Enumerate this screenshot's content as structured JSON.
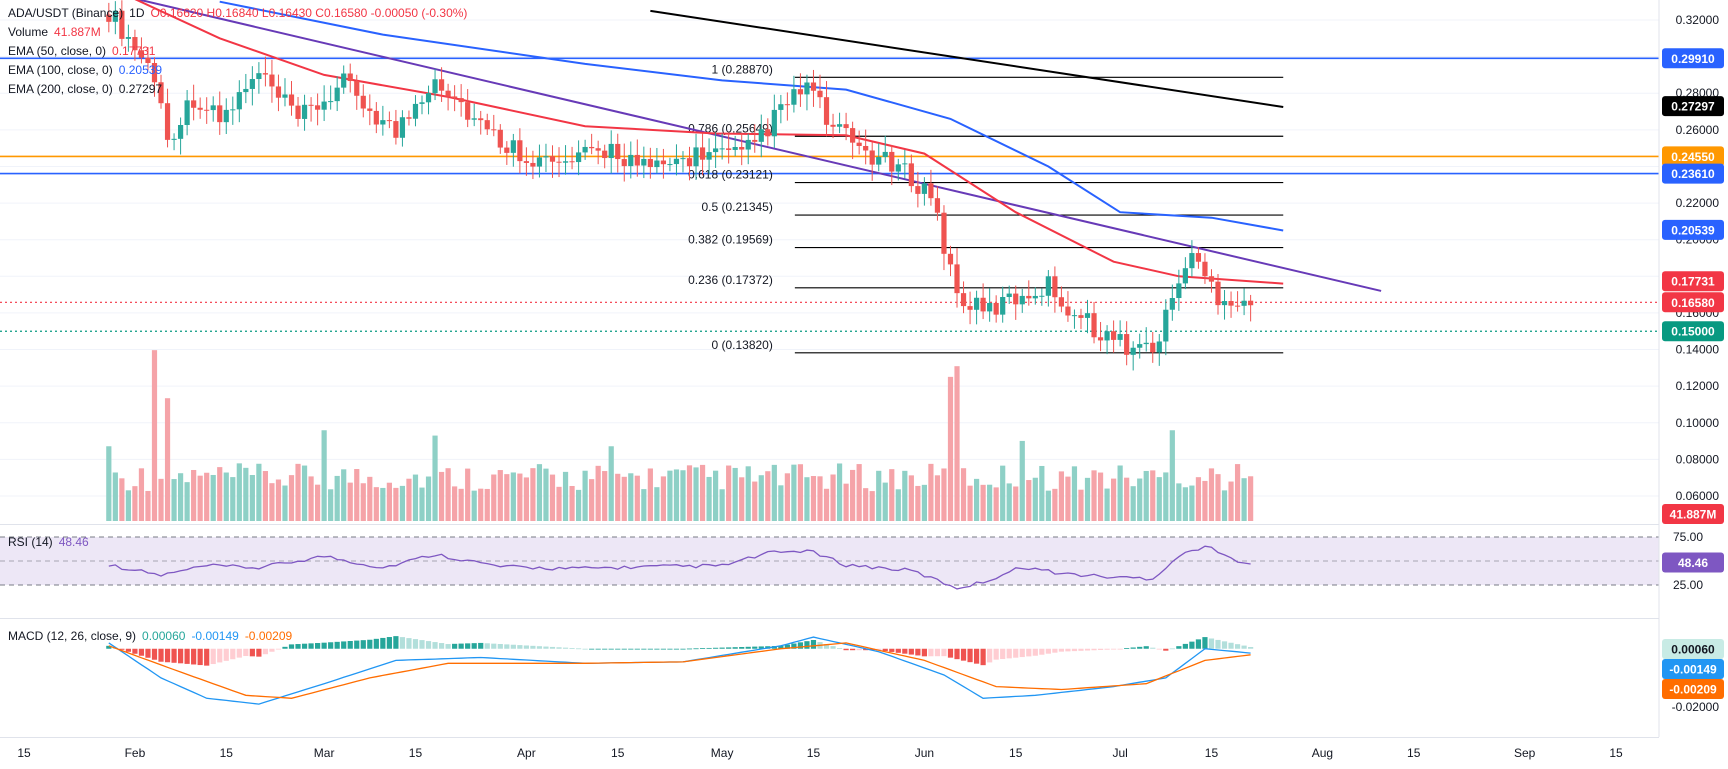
{
  "header": {
    "symbol": "ADA/USDT (Binance)",
    "interval": "1D",
    "ohlc_label": "O0.16620 H0.16840 L0.16430 C0.16580 -0.00050 (-0.30%)"
  },
  "indicators": {
    "volume": {
      "label": "Volume",
      "value": "41.887M"
    },
    "ema50": {
      "label": "EMA (50, close, 0)",
      "value": "0.17731"
    },
    "ema100": {
      "label": "EMA (100, close, 0)",
      "value": "0.20539"
    },
    "ema200": {
      "label": "EMA (200, close, 0)",
      "value": "0.27297"
    },
    "rsi": {
      "label": "RSI (14)",
      "value": "48.46"
    },
    "macd": {
      "label": "MACD (12, 26, close, 9)",
      "hist": "0.00060",
      "macd": "-0.00149",
      "signal": "-0.00209"
    }
  },
  "colors": {
    "up": "#26a69a",
    "down": "#ef5350",
    "vol_up": "#8ed0c6",
    "vol_down": "#f5a3a8",
    "ema50": "#f23645",
    "ema100": "#2962ff",
    "ema200": "#000000",
    "trendline": "#673ab7",
    "fib": "#000000",
    "h_blue": "#2962ff",
    "h_orange": "#ff9800",
    "h_green": "#089981",
    "rsi_line": "#7e57c2",
    "rsi_band": "#ede7f6",
    "macd_line": "#2196f3",
    "signal_line": "#ff6d00",
    "grid": "#f0f3fa",
    "axis_text": "#131722"
  },
  "price_axis": {
    "ticks": [
      "0.32000",
      "0.30000",
      "0.28000",
      "0.26000",
      "0.24000",
      "0.22000",
      "0.20000",
      "0.18000",
      "0.16000",
      "0.14000",
      "0.12000",
      "0.10000",
      "0.08000",
      "0.06000"
    ]
  },
  "rsi_axis": {
    "ticks": [
      "75.00",
      "25.00"
    ]
  },
  "macd_axis": {
    "ticks": [
      "-0.02000"
    ]
  },
  "time_axis": {
    "labels": [
      "15",
      "Feb",
      "15",
      "Mar",
      "15",
      "Apr",
      "15",
      "May",
      "15",
      "Jun",
      "15",
      "Jul",
      "15",
      "Aug",
      "15",
      "Sep",
      "15"
    ]
  },
  "price_badges": [
    {
      "text": "0.29910",
      "value": 0.2991,
      "bg": "#2962ff",
      "fg": "#ffffff"
    },
    {
      "text": "0.27297",
      "value": 0.27297,
      "bg": "#000000",
      "fg": "#ffffff"
    },
    {
      "text": "0.24550",
      "value": 0.2455,
      "bg": "#ff9800",
      "fg": "#ffffff"
    },
    {
      "text": "0.23610",
      "value": 0.2361,
      "bg": "#2962ff",
      "fg": "#ffffff"
    },
    {
      "text": "0.20539",
      "value": 0.20539,
      "bg": "#2962ff",
      "fg": "#ffffff"
    },
    {
      "text": "0.17731",
      "value": 0.17731,
      "bg": "#f23645",
      "fg": "#ffffff"
    },
    {
      "text": "0.16580",
      "value": 0.1658,
      "bg": "#f23645",
      "fg": "#ffffff"
    },
    {
      "text": "0.15000",
      "value": 0.15,
      "bg": "#089981",
      "fg": "#ffffff"
    }
  ],
  "volume_badge": {
    "text": "41.887M",
    "bg": "#f23645"
  },
  "rsi_badge": {
    "text": "48.46",
    "value": 48.46,
    "bg": "#7e57c2"
  },
  "macd_badges": [
    {
      "text": "0.00060",
      "bg": "#c8ebe5",
      "fg": "#131722",
      "value": 0.0006
    },
    {
      "text": "-0.00149",
      "bg": "#2196f3",
      "fg": "#ffffff",
      "value": -0.00149
    },
    {
      "text": "-0.00209",
      "bg": "#ff6d00",
      "fg": "#ffffff",
      "value": -0.00209
    }
  ],
  "chart_data": {
    "type": "candlestick",
    "symbol": "ADA/USDT",
    "timeframe": "1D",
    "ylim": [
      0.05,
      0.325
    ],
    "start_date": "2024-01-28",
    "end_date": "2024-07-21",
    "horizontal_lines": [
      {
        "value": 0.2991,
        "color": "#2962ff"
      },
      {
        "value": 0.2455,
        "color": "#ff9800"
      },
      {
        "value": 0.2361,
        "color": "#2962ff"
      },
      {
        "value": 0.15,
        "color": "#089981",
        "style": "dotted"
      },
      {
        "value": 0.1658,
        "color": "#f23645",
        "style": "dotted"
      }
    ],
    "fibonacci": [
      {
        "label": "1 (0.28870)",
        "value": 0.2887
      },
      {
        "label": "0.786 (0.25649)",
        "value": 0.25649
      },
      {
        "label": "0.618 (0.23121)",
        "value": 0.23121
      },
      {
        "label": "0.5 (0.21345)",
        "value": 0.21345
      },
      {
        "label": "0.382 (0.19569)",
        "value": 0.19569
      },
      {
        "label": "0.236 (0.17372)",
        "value": 0.17372
      },
      {
        "label": "0 (0.13820)",
        "value": 0.1382
      }
    ],
    "fib_start_date": "2024-05-10",
    "fib_end_date": "2024-07-26",
    "trendline": {
      "start": [
        "2024-01-28",
        0.335
      ],
      "end": [
        "2024-08-10",
        0.172
      ]
    },
    "ema200_segment": {
      "start": [
        "2024-04-20",
        0.325
      ],
      "end": [
        "2024-07-26",
        0.2725
      ]
    },
    "price_keypoints": [
      [
        "2024-01-28",
        0.325
      ],
      [
        "2024-02-04",
        0.29
      ],
      [
        "2024-02-06",
        0.255
      ],
      [
        "2024-02-10",
        0.278
      ],
      [
        "2024-02-14",
        0.265
      ],
      [
        "2024-02-20",
        0.29
      ],
      [
        "2024-02-26",
        0.265
      ],
      [
        "2024-03-04",
        0.285
      ],
      [
        "2024-03-12",
        0.258
      ],
      [
        "2024-03-18",
        0.29
      ],
      [
        "2024-03-26",
        0.258
      ],
      [
        "2024-04-02",
        0.245
      ],
      [
        "2024-04-06",
        0.24
      ],
      [
        "2024-04-14",
        0.25
      ],
      [
        "2024-04-20",
        0.237
      ],
      [
        "2024-04-28",
        0.248
      ],
      [
        "2024-05-04",
        0.245
      ],
      [
        "2024-05-10",
        0.27
      ],
      [
        "2024-05-14",
        0.285
      ],
      [
        "2024-05-18",
        0.26
      ],
      [
        "2024-05-24",
        0.246
      ],
      [
        "2024-05-30",
        0.234
      ],
      [
        "2024-06-02",
        0.225
      ],
      [
        "2024-06-06",
        0.17
      ],
      [
        "2024-06-10",
        0.16
      ],
      [
        "2024-06-16",
        0.17
      ],
      [
        "2024-06-20",
        0.175
      ],
      [
        "2024-06-24",
        0.16
      ],
      [
        "2024-06-30",
        0.145
      ],
      [
        "2024-07-04",
        0.14
      ],
      [
        "2024-07-07",
        0.145
      ],
      [
        "2024-07-10",
        0.18
      ],
      [
        "2024-07-12",
        0.19
      ],
      [
        "2024-07-16",
        0.17
      ],
      [
        "2024-07-21",
        0.1658
      ]
    ],
    "ema50_keypoints": [
      [
        "2024-01-28",
        0.338
      ],
      [
        "2024-02-14",
        0.31
      ],
      [
        "2024-03-01",
        0.29
      ],
      [
        "2024-03-20",
        0.278
      ],
      [
        "2024-04-10",
        0.262
      ],
      [
        "2024-04-30",
        0.258
      ],
      [
        "2024-05-20",
        0.257
      ],
      [
        "2024-06-01",
        0.247
      ],
      [
        "2024-06-15",
        0.215
      ],
      [
        "2024-06-30",
        0.188
      ],
      [
        "2024-07-10",
        0.18
      ],
      [
        "2024-07-26",
        0.176
      ]
    ],
    "ema100_keypoints": [
      [
        "2024-02-14",
        0.33
      ],
      [
        "2024-03-10",
        0.312
      ],
      [
        "2024-04-10",
        0.296
      ],
      [
        "2024-05-01",
        0.287
      ],
      [
        "2024-05-20",
        0.282
      ],
      [
        "2024-06-05",
        0.266
      ],
      [
        "2024-06-20",
        0.24
      ],
      [
        "2024-07-01",
        0.215
      ],
      [
        "2024-07-15",
        0.212
      ],
      [
        "2024-07-26",
        0.205
      ]
    ],
    "rsi_keypoints": [
      [
        "2024-01-28",
        46
      ],
      [
        "2024-02-05",
        35
      ],
      [
        "2024-02-12",
        45
      ],
      [
        "2024-02-20",
        43
      ],
      [
        "2024-03-01",
        55
      ],
      [
        "2024-03-10",
        43
      ],
      [
        "2024-03-18",
        57
      ],
      [
        "2024-03-28",
        44
      ],
      [
        "2024-04-08",
        42
      ],
      [
        "2024-04-20",
        44
      ],
      [
        "2024-05-01",
        45
      ],
      [
        "2024-05-08",
        58
      ],
      [
        "2024-05-14",
        61
      ],
      [
        "2024-05-20",
        46
      ],
      [
        "2024-05-30",
        40
      ],
      [
        "2024-06-06",
        22
      ],
      [
        "2024-06-10",
        28
      ],
      [
        "2024-06-16",
        44
      ],
      [
        "2024-06-22",
        37
      ],
      [
        "2024-06-30",
        33
      ],
      [
        "2024-07-06",
        32
      ],
      [
        "2024-07-10",
        55
      ],
      [
        "2024-07-14",
        66
      ],
      [
        "2024-07-18",
        52
      ],
      [
        "2024-07-21",
        48.46
      ]
    ],
    "macd_keypoints": [
      [
        "2024-01-28",
        0.002
      ],
      [
        "2024-02-05",
        -0.01
      ],
      [
        "2024-02-12",
        -0.017
      ],
      [
        "2024-02-20",
        -0.019
      ],
      [
        "2024-03-01",
        -0.012
      ],
      [
        "2024-03-12",
        -0.004
      ],
      [
        "2024-03-25",
        -0.003
      ],
      [
        "2024-04-10",
        -0.005
      ],
      [
        "2024-04-25",
        -0.0045
      ],
      [
        "2024-05-10",
        0.001
      ],
      [
        "2024-05-15",
        0.004
      ],
      [
        "2024-05-25",
        -0.001
      ],
      [
        "2024-06-04",
        -0.009
      ],
      [
        "2024-06-10",
        -0.017
      ],
      [
        "2024-06-18",
        -0.016
      ],
      [
        "2024-06-30",
        -0.013
      ],
      [
        "2024-07-08",
        -0.01
      ],
      [
        "2024-07-14",
        0.0
      ],
      [
        "2024-07-21",
        -0.00149
      ]
    ],
    "signal_keypoints": [
      [
        "2024-01-28",
        0.001
      ],
      [
        "2024-02-08",
        -0.008
      ],
      [
        "2024-02-18",
        -0.016
      ],
      [
        "2024-02-25",
        -0.017
      ],
      [
        "2024-03-08",
        -0.01
      ],
      [
        "2024-03-20",
        -0.005
      ],
      [
        "2024-04-10",
        -0.005
      ],
      [
        "2024-04-25",
        -0.0045
      ],
      [
        "2024-05-10",
        0.0
      ],
      [
        "2024-05-20",
        0.002
      ],
      [
        "2024-06-01",
        -0.004
      ],
      [
        "2024-06-12",
        -0.013
      ],
      [
        "2024-06-22",
        -0.014
      ],
      [
        "2024-07-05",
        -0.012
      ],
      [
        "2024-07-14",
        -0.004
      ],
      [
        "2024-07-21",
        -0.00209
      ]
    ],
    "volume_peaks_M": [
      [
        "2024-01-28",
        70
      ],
      [
        "2024-02-04",
        160
      ],
      [
        "2024-02-06",
        115
      ],
      [
        "2024-03-01",
        85
      ],
      [
        "2024-03-18",
        80
      ],
      [
        "2024-04-14",
        70
      ],
      [
        "2024-06-05",
        135
      ],
      [
        "2024-06-06",
        145
      ],
      [
        "2024-06-16",
        75
      ],
      [
        "2024-07-09",
        85
      ],
      [
        "2024-07-21",
        41.887
      ]
    ]
  }
}
